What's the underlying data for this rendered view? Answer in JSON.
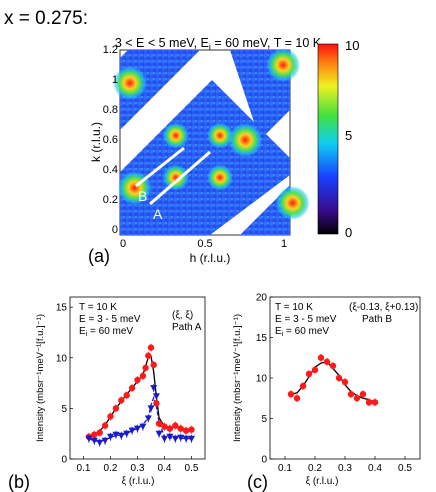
{
  "figure_label": "x = 0.275:",
  "colormap": {
    "title": "3 < E < 5 meV, E",
    "title_sub": "i",
    "title_tail": " = 60 meV, T = 10 K",
    "panel_label": "(a)",
    "xlabel": "h (r.l.u.)",
    "ylabel": "k (r.l.u.)",
    "xticks": [
      "0",
      "0.5",
      "1"
    ],
    "yticks": [
      "0",
      "0.2",
      "0.4",
      "0.6",
      "0.8",
      "1",
      "1.2"
    ],
    "colorbar_ticks": [
      "10",
      "5",
      "0"
    ],
    "cut_labels": [
      "B",
      "A"
    ],
    "peaks_hk": [
      [
        0.34,
        0.65
      ],
      [
        0.62,
        0.65
      ],
      [
        0.34,
        0.37
      ],
      [
        0.62,
        0.37
      ],
      [
        0.05,
        1.0
      ],
      [
        0.78,
        0.62
      ],
      [
        1.02,
        1.12
      ],
      [
        1.08,
        0.2
      ],
      [
        0.08,
        0.3
      ]
    ]
  },
  "chart_data": [
    {
      "type": "scatter",
      "panel": "(b)",
      "xlabel": "ξ (r.l.u.)",
      "ylabel": "Intensity (mbsr⁻¹meV⁻¹[f.u.]⁻¹)",
      "xlim": [
        0.05,
        0.55
      ],
      "ylim": [
        0,
        16
      ],
      "xticks": [
        "0.1",
        "0.2",
        "0.3",
        "0.4",
        "0.5"
      ],
      "yticks": [
        "0",
        "5",
        "10",
        "15"
      ],
      "annotation_lines": [
        "T = 10 K",
        "E = 3 - 5 meV",
        "E",
        "i",
        " = 60 meV"
      ],
      "annotation_right": [
        "(ξ, ξ)",
        "Path A"
      ],
      "series": [
        {
          "color": "#ff1a1a",
          "marker": "circle",
          "x": [
            0.12,
            0.14,
            0.16,
            0.18,
            0.2,
            0.22,
            0.24,
            0.26,
            0.28,
            0.3,
            0.32,
            0.33,
            0.34,
            0.35,
            0.36,
            0.37,
            0.38,
            0.4,
            0.42,
            0.44,
            0.46,
            0.48,
            0.5
          ],
          "y": [
            2.2,
            2.4,
            2.6,
            3.3,
            4.2,
            5.0,
            5.8,
            6.3,
            7.0,
            7.8,
            8.2,
            9.0,
            10.2,
            11.0,
            9.3,
            5.5,
            3.5,
            3.2,
            3.0,
            3.3,
            3.0,
            2.8,
            2.9
          ]
        },
        {
          "color": "#1a1acc",
          "marker": "triangle-down",
          "x": [
            0.12,
            0.14,
            0.16,
            0.18,
            0.2,
            0.22,
            0.24,
            0.26,
            0.28,
            0.3,
            0.32,
            0.34,
            0.35,
            0.36,
            0.37,
            0.38,
            0.4,
            0.42,
            0.44,
            0.46,
            0.48,
            0.5
          ],
          "y": [
            2.0,
            1.8,
            1.6,
            1.8,
            2.2,
            2.4,
            2.3,
            2.5,
            2.8,
            3.0,
            3.2,
            4.0,
            5.0,
            7.0,
            6.2,
            2.5,
            2.0,
            2.2,
            2.0,
            2.1,
            2.0,
            2.0
          ]
        }
      ]
    },
    {
      "type": "scatter",
      "panel": "(c)",
      "xlabel": "ξ (r.l.u.)",
      "ylabel": "Intensity (mbsr⁻¹meV⁻¹[f.u.]⁻¹)",
      "xlim": [
        0.05,
        0.55
      ],
      "ylim": [
        0,
        20
      ],
      "xticks": [
        "0.1",
        "0.2",
        "0.3",
        "0.4",
        "0.5"
      ],
      "yticks": [
        "0",
        "5",
        "10",
        "15",
        "20"
      ],
      "annotation_lines": [
        "T = 10 K",
        "E = 3 - 5 meV",
        "E",
        "i",
        " = 60 meV"
      ],
      "annotation_right": [
        "(ξ-0.13, ξ+0.13)",
        "Path B"
      ],
      "series": [
        {
          "color": "#ff1a1a",
          "marker": "circle",
          "x": [
            0.12,
            0.14,
            0.16,
            0.18,
            0.2,
            0.22,
            0.24,
            0.26,
            0.28,
            0.3,
            0.32,
            0.34,
            0.36,
            0.38,
            0.4
          ],
          "y": [
            8.0,
            7.5,
            9.0,
            10.5,
            11.0,
            12.5,
            12.0,
            11.5,
            10.0,
            9.5,
            8.0,
            7.5,
            8.0,
            7.0,
            7.0
          ]
        }
      ]
    }
  ]
}
